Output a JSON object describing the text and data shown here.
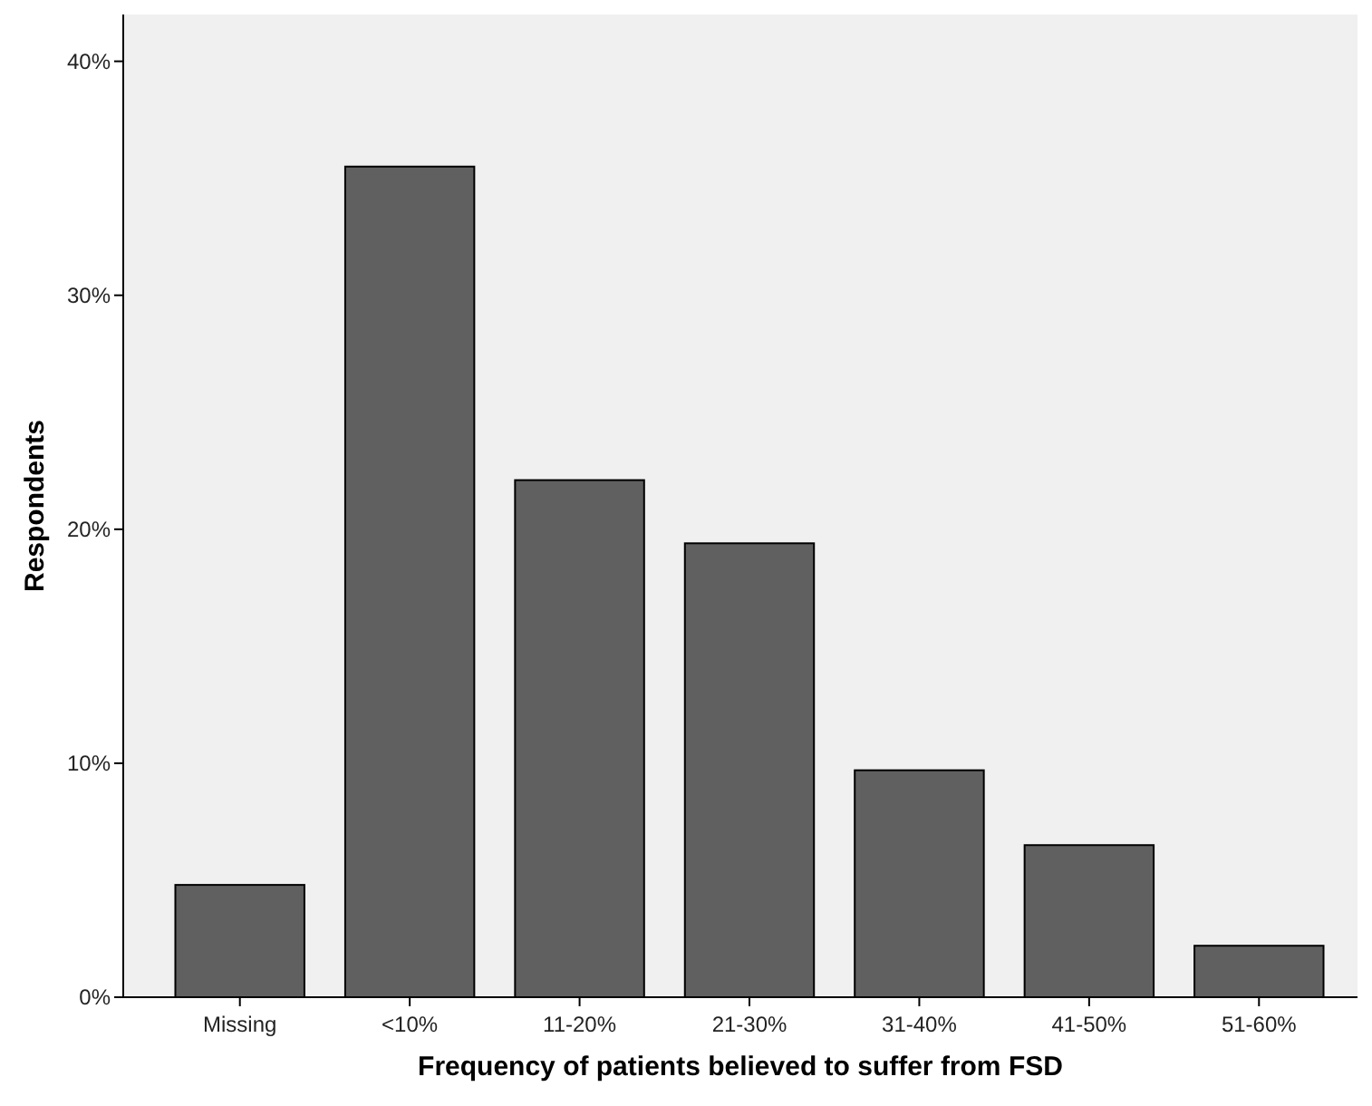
{
  "chart_data": {
    "type": "bar",
    "xlabel": "Frequency of patients believed to suffer from FSD",
    "ylabel": "Respondents",
    "categories": [
      "Missing",
      "<10%",
      "11-20%",
      "21-30%",
      "31-40%",
      "41-50%",
      "51-60%"
    ],
    "values": [
      4.8,
      35.5,
      22.1,
      19.4,
      9.7,
      6.5,
      2.2
    ],
    "color": "#606060",
    "ylim": [
      0,
      42
    ],
    "yticks": [
      {
        "value": 0,
        "label": "0%"
      },
      {
        "value": 10,
        "label": "10%"
      },
      {
        "value": 20,
        "label": "20%"
      },
      {
        "value": 30,
        "label": "30%"
      },
      {
        "value": 40,
        "label": "40%"
      }
    ],
    "grid": false
  }
}
